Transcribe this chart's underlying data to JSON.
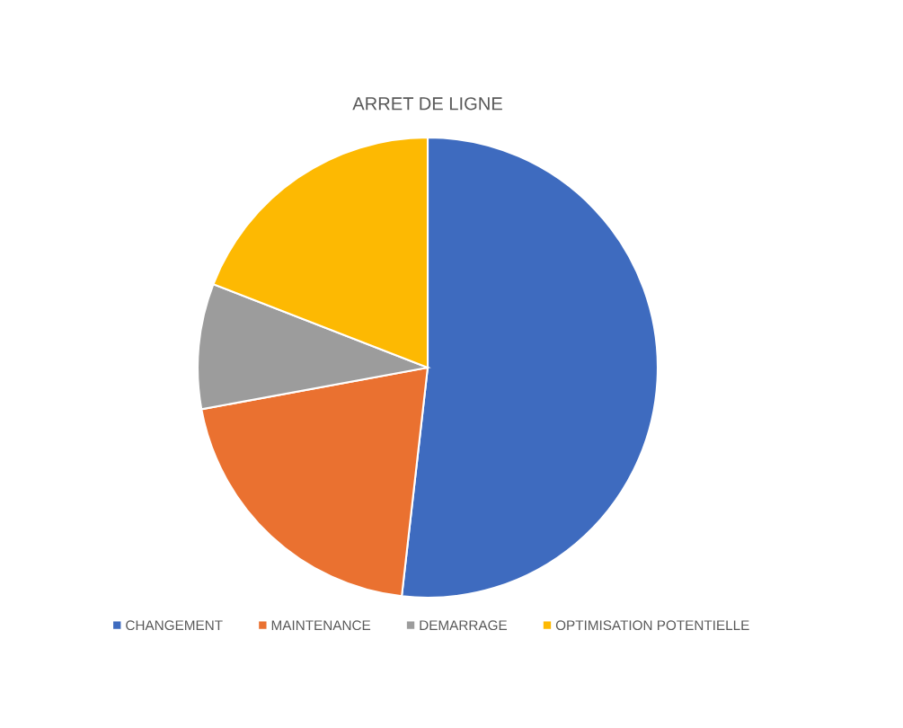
{
  "chart_data": {
    "type": "pie",
    "title": "ARRET DE LIGNE",
    "categories": [
      "CHANGEMENT",
      "MAINTENANCE",
      "DEMARRAGE",
      "OPTIMISATION POTENTIELLE"
    ],
    "values": [
      51.8,
      20.3,
      8.8,
      19.1
    ],
    "colors": [
      "#3e6bbf",
      "#ea7130",
      "#9c9c9c",
      "#fdb902"
    ],
    "legend": "bottom"
  }
}
